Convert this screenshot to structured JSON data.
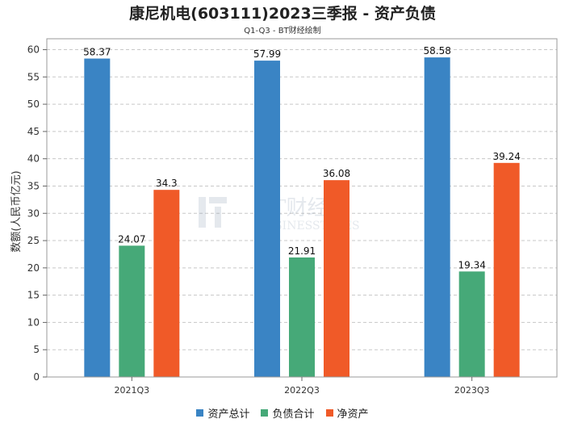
{
  "chart_data": {
    "type": "bar",
    "title": "康尼机电(603111)2023三季报 - 资产负债",
    "subtitle": "Q1-Q3 - BT财经绘制",
    "xlabel": "",
    "ylabel": "数额(人民币亿元)",
    "ylim": [
      0,
      62
    ],
    "yticks": [
      0,
      5,
      10,
      15,
      20,
      25,
      30,
      35,
      40,
      45,
      50,
      55,
      60
    ],
    "categories": [
      "2021Q3",
      "2022Q3",
      "2023Q3"
    ],
    "series": [
      {
        "name": "资产总计",
        "color": "#3a84c4",
        "values": [
          58.37,
          57.99,
          58.58
        ],
        "labels": [
          "58.37",
          "57.99",
          "58.58"
        ]
      },
      {
        "name": "负债合计",
        "color": "#46a978",
        "values": [
          24.07,
          21.91,
          19.34
        ],
        "labels": [
          "24.07",
          "21.91",
          "19.34"
        ]
      },
      {
        "name": "净资产",
        "color": "#f05a28",
        "values": [
          34.3,
          36.08,
          39.24
        ],
        "labels": [
          "34.3",
          "36.08",
          "39.24"
        ]
      }
    ],
    "grid": true,
    "legend": "bottom-center"
  },
  "watermark": {
    "name": "BT财经",
    "sub": "BUSINESSTIMES"
  }
}
